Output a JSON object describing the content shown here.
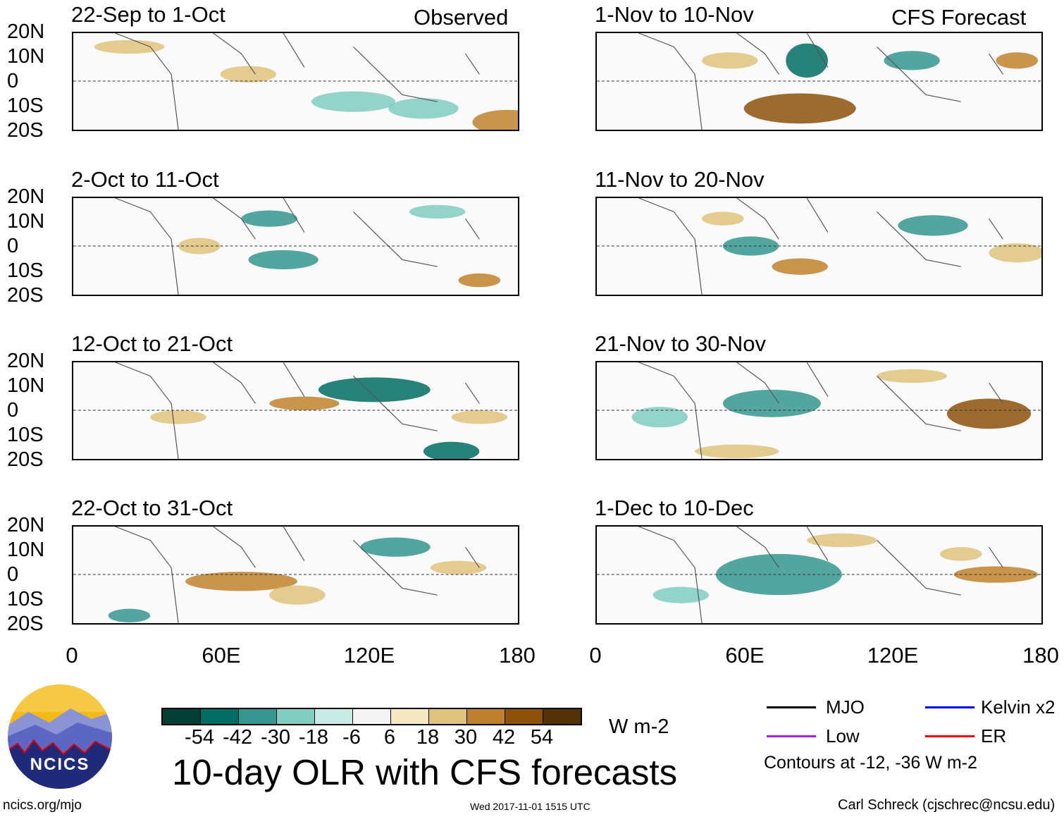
{
  "panels": {
    "left": [
      {
        "title": "22-Sep to 1-Oct",
        "tag": "Observed"
      },
      {
        "title": "2-Oct to 11-Oct"
      },
      {
        "title": "12-Oct to 21-Oct"
      },
      {
        "title": "22-Oct to 31-Oct"
      }
    ],
    "right": [
      {
        "title": "1-Nov to 10-Nov",
        "tag": "CFS Forecast"
      },
      {
        "title": "11-Nov to 20-Nov"
      },
      {
        "title": "21-Nov to 30-Nov"
      },
      {
        "title": "1-Dec to 10-Dec"
      }
    ]
  },
  "lat_labels": [
    "20N",
    "10N",
    "0",
    "10S",
    "20S"
  ],
  "lon_labels": [
    "0",
    "60E",
    "120E",
    "180"
  ],
  "colorbar": {
    "labels": [
      "-54",
      "-42",
      "-30",
      "-18",
      "-6",
      "6",
      "18",
      "30",
      "42",
      "54"
    ],
    "colors": [
      "#013f35",
      "#016c62",
      "#35978f",
      "#80cdc1",
      "#c7eae5",
      "#f5f5f5",
      "#f6e8c3",
      "#dfc27d",
      "#bf812d",
      "#8c510a",
      "#543005"
    ],
    "units": "W m-2"
  },
  "legend": {
    "items": [
      {
        "label": "MJO",
        "color": "#000000"
      },
      {
        "label": "Kelvin x2",
        "color": "#0000ff"
      },
      {
        "label": "Low",
        "color": "#a020f0"
      },
      {
        "label": "ER",
        "color": "#ff0000"
      }
    ],
    "note": "Contours at -12, -36 W m-2"
  },
  "title": "10-day OLR with CFS forecasts",
  "timestamp": "Wed 2017-11-01 1515 UTC",
  "footer_left": "ncics.org/mjo",
  "footer_right": "Carl Schreck (cjschrec@ncsu.edu)",
  "logo_text": "NCICS"
}
